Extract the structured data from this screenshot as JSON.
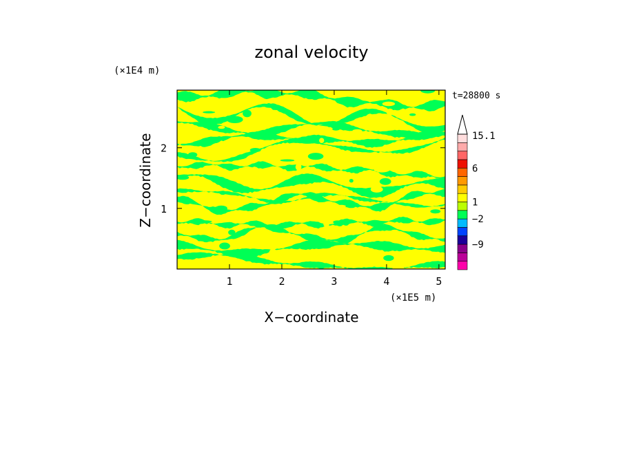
{
  "chart_data": {
    "type": "heatmap",
    "title": "zonal velocity",
    "xlabel": "X−coordinate",
    "ylabel": "Z−coordinate",
    "x_unit": "(×1E5 m)",
    "y_unit": "(×1E4 m)",
    "time_label": "t=28800 s",
    "xlim": [
      0,
      5.12
    ],
    "ylim": [
      0,
      2.95
    ],
    "x_ticks": [
      {
        "value": 1,
        "label": "1"
      },
      {
        "value": 2,
        "label": "2"
      },
      {
        "value": 3,
        "label": "3"
      },
      {
        "value": 4,
        "label": "4"
      },
      {
        "value": 5,
        "label": "5"
      }
    ],
    "y_ticks": [
      {
        "value": 1,
        "label": "1"
      },
      {
        "value": 2,
        "label": "2"
      }
    ],
    "field_colors": {
      "positive_weak": "#ffff00",
      "negative_weak": "#00ff55",
      "frame": "#000000"
    },
    "colorbar": {
      "levels": [
        {
          "color": "#ff00aa"
        },
        {
          "color": "#bb0099"
        },
        {
          "color": "#8a008a"
        },
        {
          "color": "#1c0099"
        },
        {
          "color": "#0044ff"
        },
        {
          "color": "#00bbff"
        },
        {
          "color": "#00ff55"
        },
        {
          "color": "#bbff00"
        },
        {
          "color": "#ffff00"
        },
        {
          "color": "#ffcc00"
        },
        {
          "color": "#ff9900"
        },
        {
          "color": "#ff6600"
        },
        {
          "color": "#ee1100"
        },
        {
          "color": "#ff6666"
        },
        {
          "color": "#ffaaaa"
        },
        {
          "color": "#ffdddd"
        }
      ],
      "labels": [
        {
          "value": 15.1,
          "label": "15.1"
        },
        {
          "value": 6,
          "label": "6"
        },
        {
          "value": 1,
          "label": "1"
        },
        {
          "value": -2,
          "label": "−2"
        },
        {
          "value": -9,
          "label": "−9"
        }
      ],
      "extend_top": true
    }
  }
}
